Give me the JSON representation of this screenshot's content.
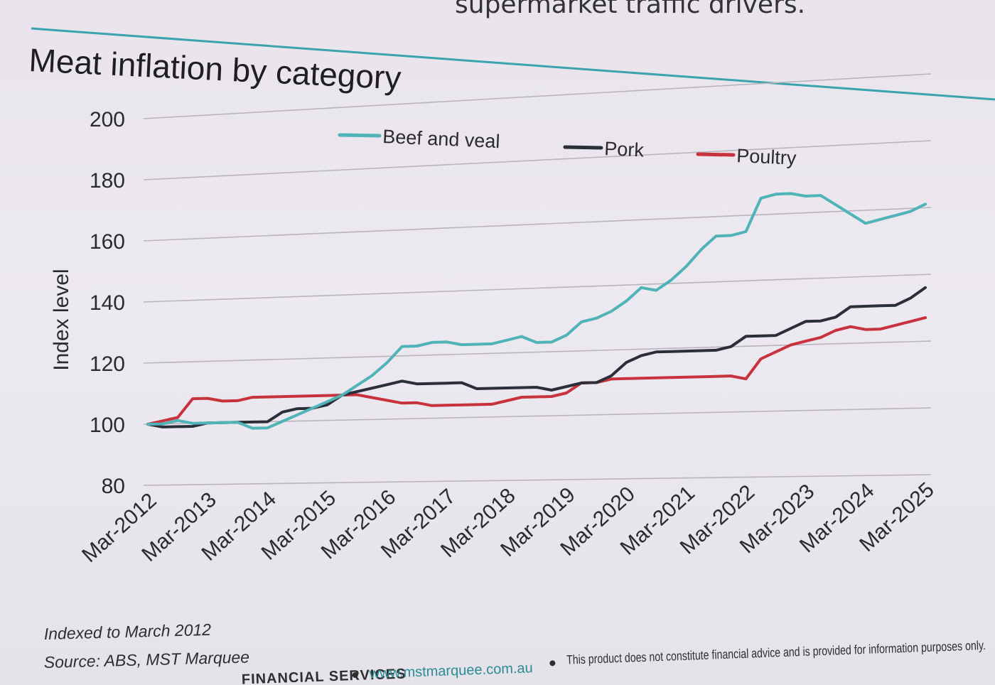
{
  "slide": {
    "top_heading": "supermarket traffic drivers.",
    "accent_color": "#3aa3ad",
    "chart_note": "Indexed to March 2012",
    "source": "Source: ABS, MST Marquee",
    "footer": {
      "company": "FINANCIAL SERVICES",
      "website": "www.mstmarquee.com.au",
      "disclaimer": "This product does not constitute financial advice and is provided for information purposes only."
    }
  },
  "chart_data": {
    "type": "line",
    "title": "Meat inflation by category",
    "ylabel": "Index level",
    "xlabel": "",
    "ylim": [
      80,
      200
    ],
    "y_ticks": [
      200,
      180,
      160,
      140,
      120,
      100,
      80
    ],
    "x_range": [
      0,
      52
    ],
    "x_ticks": [
      {
        "label": "Mar-2012",
        "x": 0
      },
      {
        "label": "Mar-2013",
        "x": 4
      },
      {
        "label": "Mar-2014",
        "x": 8
      },
      {
        "label": "Mar-2015",
        "x": 12
      },
      {
        "label": "Mar-2016",
        "x": 16
      },
      {
        "label": "Mar-2017",
        "x": 20
      },
      {
        "label": "Mar-2018",
        "x": 24
      },
      {
        "label": "Mar-2019",
        "x": 28
      },
      {
        "label": "Mar-2020",
        "x": 32
      },
      {
        "label": "Mar-2021",
        "x": 36
      },
      {
        "label": "Mar-2022",
        "x": 40
      },
      {
        "label": "Mar-2023",
        "x": 44
      },
      {
        "label": "Mar-2024",
        "x": 48
      },
      {
        "label": "Mar-2025",
        "x": 52
      }
    ],
    "grid": "horizontal",
    "legend_position": "top",
    "series": [
      {
        "name": "Beef and veal",
        "color": "#4fb3b8",
        "values": [
          100,
          100,
          101,
          100,
          100,
          100,
          100,
          98,
          98,
          100,
          102,
          104,
          106,
          108,
          111,
          114,
          118,
          123,
          123,
          124,
          124,
          123,
          123,
          123,
          124,
          125,
          123,
          123,
          125,
          129,
          130,
          132,
          135,
          139,
          138,
          141,
          145,
          150,
          154,
          154,
          155,
          165,
          166,
          166,
          165,
          165,
          162,
          159,
          156,
          157,
          158,
          159,
          161
        ]
      },
      {
        "name": "Pork",
        "color": "#2b2f3a",
        "values": [
          100,
          99,
          99,
          99,
          100,
          100,
          100,
          100,
          100,
          103,
          104,
          104,
          105,
          108,
          109,
          110,
          111,
          112,
          111,
          111,
          111,
          111,
          109,
          109,
          109,
          109,
          109,
          108,
          109,
          110,
          110,
          112,
          116,
          118,
          119,
          119,
          119,
          119,
          119,
          120,
          123,
          123,
          123,
          125,
          127,
          127,
          128,
          131,
          131,
          131,
          131,
          133,
          136
        ]
      },
      {
        "name": "Poultry",
        "color": "#c8323c",
        "values": [
          100,
          101,
          102,
          108,
          108,
          107,
          107,
          108,
          108,
          108,
          108,
          108,
          108,
          108,
          108,
          107,
          106,
          105,
          105,
          104,
          104,
          104,
          104,
          104,
          105,
          106,
          106,
          106,
          107,
          110,
          110,
          111,
          111,
          111,
          111,
          111,
          111,
          111,
          111,
          111,
          110,
          116,
          118,
          120,
          121,
          122,
          124,
          125,
          124,
          124,
          125,
          126,
          127
        ]
      }
    ]
  }
}
